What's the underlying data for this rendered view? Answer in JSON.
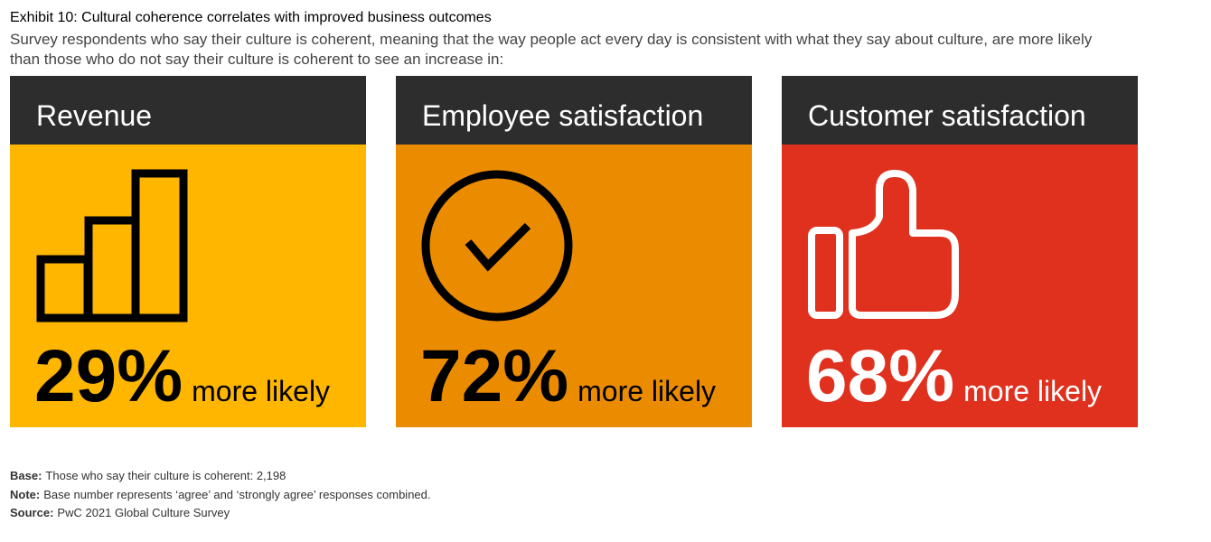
{
  "header": {
    "title": "Exhibit 10: Cultural coherence correlates with improved business outcomes",
    "subtitle_lines": [
      "Survey respondents who say their culture is coherent, meaning that the way people act every day is consistent with what they say about culture, are more likely",
      "than those who do not say their culture is coherent to see an increase in:"
    ]
  },
  "cards": [
    {
      "title": "Revenue",
      "value": "29%",
      "suffix": "more likely"
    },
    {
      "title": "Employee satisfaction",
      "value": "72%",
      "suffix": "more likely"
    },
    {
      "title": "Customer satisfaction",
      "value": "68%",
      "suffix": "more likely"
    }
  ],
  "footnotes": [
    {
      "label": "Base:",
      "text": "Those who say their culture is coherent: 2,198"
    },
    {
      "label": "Note:",
      "text": "Base number represents ‘agree’ and ‘strongly agree’ responses combined."
    },
    {
      "label": "Source:",
      "text": "PwC 2021 Global Culture Survey"
    }
  ]
}
